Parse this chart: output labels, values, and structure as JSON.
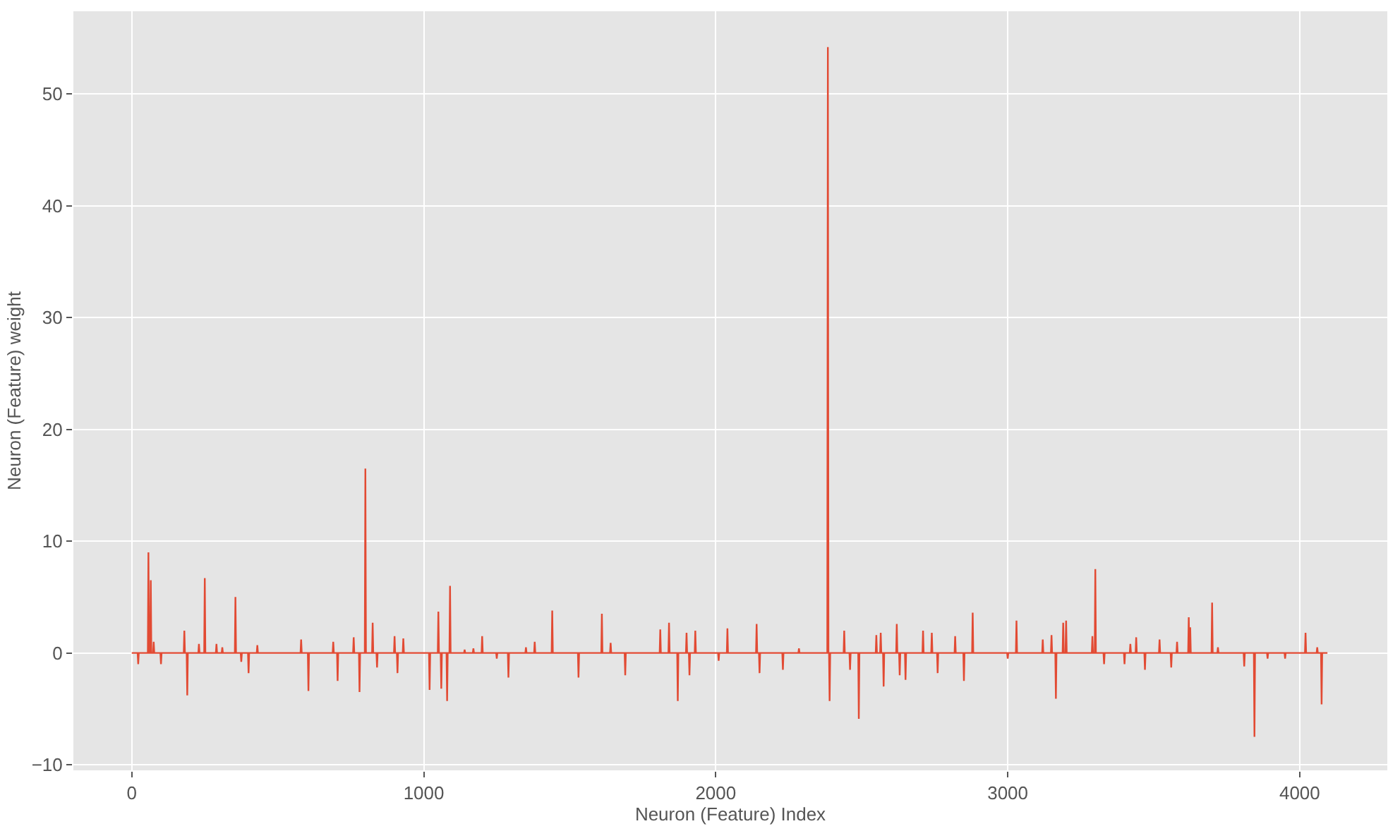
{
  "chart_data": {
    "type": "line",
    "xlabel": "Neuron (Feature) Index",
    "ylabel": "Neuron (Feature) weight",
    "xlim": [
      -200,
      4300
    ],
    "ylim": [
      -10.5,
      57.4
    ],
    "xticks": [
      0,
      1000,
      2000,
      3000,
      4000
    ],
    "yticks": [
      -10,
      0,
      10,
      20,
      30,
      40,
      50
    ],
    "grid": true,
    "series": [
      {
        "color": "#e24a33",
        "x": [
          0,
          20,
          22,
          24,
          55,
          57,
          59,
          63,
          65,
          67,
          73,
          75,
          77,
          98,
          100,
          102,
          178,
          180,
          182,
          188,
          190,
          192,
          228,
          230,
          232,
          248,
          250,
          252,
          288,
          290,
          292,
          308,
          310,
          312,
          353,
          355,
          357,
          373,
          375,
          377,
          398,
          400,
          402,
          428,
          430,
          432,
          578,
          580,
          582,
          603,
          605,
          607,
          688,
          690,
          692,
          703,
          705,
          707,
          758,
          760,
          762,
          778,
          780,
          782,
          798,
          800,
          802,
          823,
          825,
          827,
          838,
          840,
          842,
          898,
          900,
          902,
          908,
          910,
          912,
          928,
          930,
          932,
          1018,
          1020,
          1022,
          1048,
          1050,
          1052,
          1058,
          1060,
          1062,
          1078,
          1080,
          1082,
          1088,
          1090,
          1092,
          1138,
          1140,
          1142,
          1168,
          1170,
          1172,
          1198,
          1200,
          1202,
          1248,
          1250,
          1252,
          1288,
          1290,
          1292,
          1348,
          1350,
          1352,
          1378,
          1380,
          1382,
          1438,
          1440,
          1442,
          1528,
          1530,
          1532,
          1608,
          1610,
          1612,
          1638,
          1640,
          1642,
          1688,
          1690,
          1692,
          1808,
          1810,
          1812,
          1838,
          1840,
          1842,
          1868,
          1870,
          1872,
          1898,
          1900,
          1902,
          1908,
          1910,
          1912,
          1928,
          1930,
          1932,
          2008,
          2010,
          2012,
          2038,
          2040,
          2042,
          2138,
          2140,
          2142,
          2148,
          2150,
          2152,
          2228,
          2230,
          2232,
          2283,
          2285,
          2287,
          2382,
          2384,
          2386,
          2388,
          2390,
          2392,
          2438,
          2440,
          2442,
          2458,
          2460,
          2462,
          2488,
          2490,
          2492,
          2548,
          2550,
          2552,
          2563,
          2565,
          2567,
          2573,
          2575,
          2577,
          2618,
          2620,
          2622,
          2628,
          2630,
          2632,
          2648,
          2650,
          2652,
          2708,
          2710,
          2712,
          2738,
          2740,
          2742,
          2758,
          2760,
          2762,
          2818,
          2820,
          2822,
          2848,
          2850,
          2852,
          2878,
          2880,
          2882,
          2998,
          3000,
          3002,
          3028,
          3030,
          3032,
          3118,
          3120,
          3122,
          3148,
          3150,
          3152,
          3163,
          3165,
          3167,
          3188,
          3190,
          3192,
          3198,
          3200,
          3202,
          3288,
          3290,
          3292,
          3298,
          3300,
          3302,
          3328,
          3330,
          3332,
          3398,
          3400,
          3402,
          3418,
          3420,
          3422,
          3438,
          3440,
          3442,
          3468,
          3470,
          3472,
          3518,
          3520,
          3522,
          3558,
          3560,
          3562,
          3578,
          3580,
          3582,
          3618,
          3620,
          3622,
          3623,
          3625,
          3627,
          3698,
          3700,
          3702,
          3718,
          3720,
          3722,
          3808,
          3810,
          3812,
          3843,
          3845,
          3847,
          3888,
          3890,
          3892,
          3948,
          3950,
          3952,
          4018,
          4020,
          4022,
          4058,
          4060,
          4062,
          4073,
          4075,
          4077,
          4095
        ],
        "values": [
          0,
          0,
          -1.0,
          0,
          0,
          9.0,
          0,
          0,
          6.5,
          0,
          0,
          1.0,
          0,
          0,
          -1.0,
          0,
          0,
          2.0,
          0,
          0,
          -3.8,
          0,
          0,
          0.8,
          0,
          0,
          6.7,
          0,
          0,
          0.8,
          0,
          0,
          0.5,
          0,
          0,
          5.0,
          0,
          0,
          -0.8,
          0,
          0,
          -1.8,
          0,
          0,
          0.7,
          0,
          0,
          1.2,
          0,
          0,
          -3.4,
          0,
          0,
          1.0,
          0,
          0,
          -2.5,
          0,
          0,
          1.4,
          0,
          0,
          -3.5,
          0,
          0,
          16.5,
          0,
          0,
          2.7,
          0,
          0,
          -1.3,
          0,
          0,
          1.5,
          0,
          0,
          -1.8,
          0,
          0,
          1.3,
          0,
          0,
          -3.3,
          0,
          0,
          3.7,
          0,
          0,
          -3.2,
          0,
          0,
          -4.3,
          0,
          0,
          6.0,
          0,
          0,
          0.3,
          0,
          0,
          0.4,
          0,
          0,
          1.5,
          0,
          0,
          -0.5,
          0,
          0,
          -2.2,
          0,
          0,
          0.5,
          0,
          0,
          1.0,
          0,
          0,
          3.8,
          0,
          0,
          -2.2,
          0,
          0,
          3.5,
          0,
          0,
          0.9,
          0,
          0,
          -2.0,
          0,
          0,
          2.1,
          0,
          0,
          2.7,
          0,
          0,
          -4.3,
          0,
          0,
          1.8,
          0,
          0,
          -2.0,
          0,
          0,
          2.0,
          0,
          0,
          -0.7,
          0,
          0,
          2.2,
          0,
          0,
          2.6,
          0,
          0,
          -1.8,
          0,
          0,
          -1.5,
          0,
          0,
          0.4,
          0,
          0,
          54.2,
          0,
          0,
          -4.3,
          0,
          0,
          2.0,
          0,
          0,
          -1.5,
          0,
          0,
          -5.9,
          0,
          0,
          1.6,
          0,
          0,
          1.8,
          0,
          0,
          -3.0,
          0,
          0,
          2.6,
          0,
          0,
          -2.0,
          0,
          0,
          -2.4,
          0,
          0,
          2.0,
          0,
          0,
          1.8,
          0,
          0,
          -1.8,
          0,
          0,
          1.5,
          0,
          0,
          -2.5,
          0,
          0,
          3.6,
          0,
          0,
          -0.5,
          0,
          0,
          2.9,
          0,
          0,
          1.2,
          0,
          0,
          1.6,
          0,
          0,
          -4.1,
          0,
          0,
          2.7,
          0,
          0,
          2.9,
          0,
          0,
          1.5,
          0,
          0,
          7.5,
          0,
          0,
          -1.0,
          0,
          0,
          -1.0,
          0,
          0,
          0.8,
          0,
          0,
          1.4,
          0,
          0,
          -1.5,
          0,
          0,
          1.2,
          0,
          0,
          -1.3,
          0,
          0,
          1.0,
          0,
          0,
          3.2,
          0,
          0,
          2.3,
          0,
          0,
          4.5,
          0,
          0,
          0.5,
          0,
          0,
          -1.2,
          0,
          0,
          -7.5,
          0,
          0,
          -0.5,
          0,
          0,
          -0.5,
          0,
          0,
          1.8,
          0,
          0,
          0.5,
          0,
          0,
          -4.6,
          0,
          0
        ]
      }
    ]
  }
}
